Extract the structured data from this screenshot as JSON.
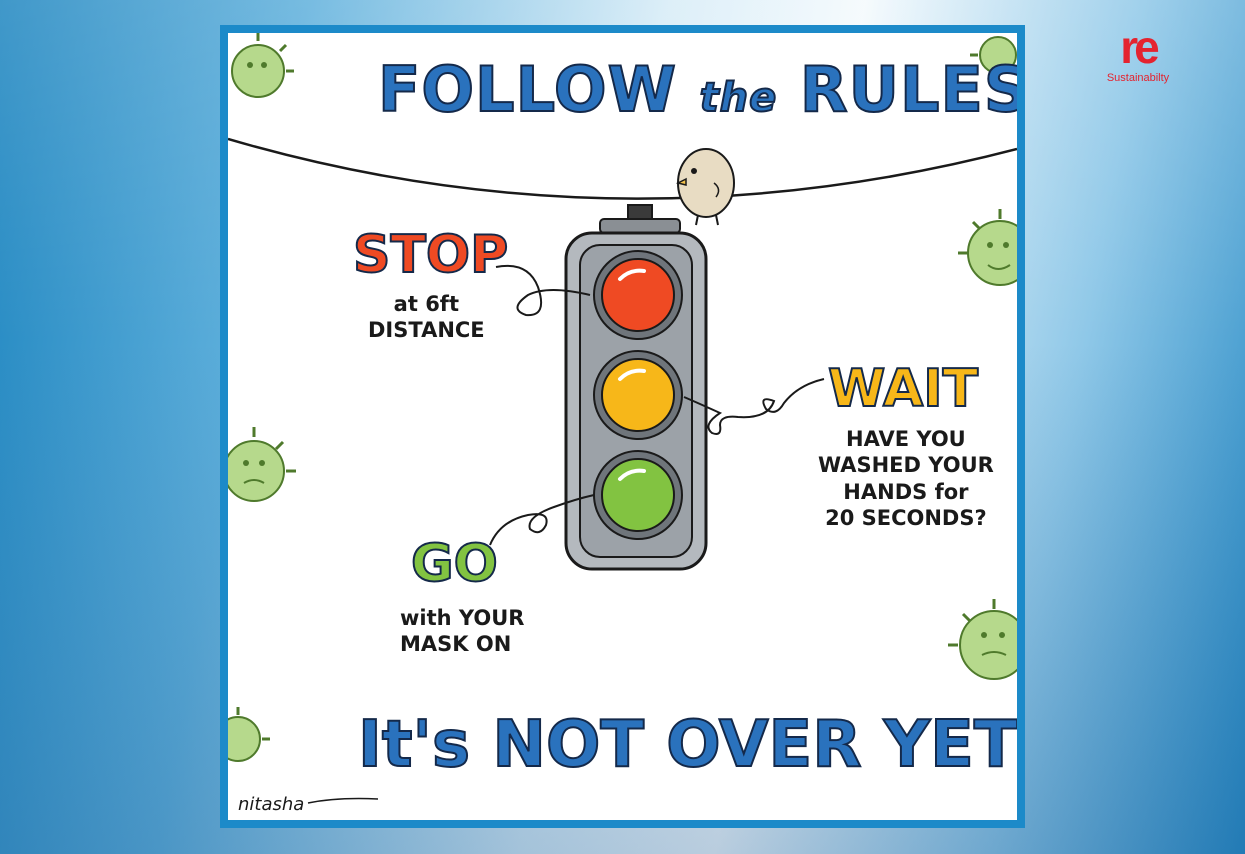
{
  "logo": {
    "mark": "re",
    "text": "Sustainabilty"
  },
  "poster": {
    "title_part1": "FOLLOW",
    "title_part2": "the",
    "title_part3": "RULES",
    "stop": {
      "heading": "STOP",
      "line1": "at 6ft",
      "line2": "DISTANCE"
    },
    "wait": {
      "heading": "WAIT",
      "line1": "HAVE YOU",
      "line2": "WASHED YOUR",
      "line3": "HANDS for",
      "line4": "20 SECONDS?"
    },
    "go": {
      "heading": "GO",
      "line1": "with YOUR",
      "line2": "MASK ON"
    },
    "footer": "It's NOT OVER YET!",
    "signature": "nitasha"
  },
  "colors": {
    "frame_blue": "#1c8ac9",
    "text_blue": "#2a72bd",
    "red_light": "#ef4a23",
    "amber_light": "#f7b719",
    "green_light": "#82c341",
    "logo_red": "#e4232f",
    "virus_green": "#b6d98c"
  },
  "icons": [
    "virus-icon",
    "bird-icon",
    "traffic-light-icon"
  ]
}
